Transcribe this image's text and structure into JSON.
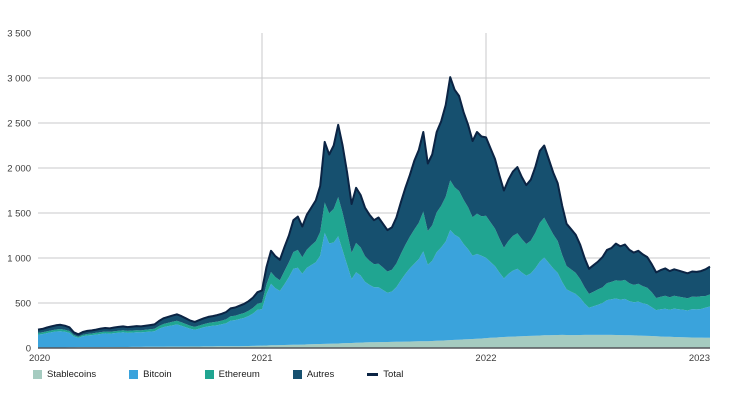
{
  "chart_data": {
    "type": "area",
    "stacked": true,
    "title": "",
    "unit_hint": "milliards USD",
    "xlim": [
      2020,
      2023
    ],
    "ylim": [
      0,
      3500
    ],
    "x_start": 2020,
    "x_step_years": 0.02,
    "grid": {
      "horizontal_ticks": [
        500,
        1000,
        1500,
        2000,
        2500,
        3000
      ],
      "vertical_years": [
        2021,
        2022
      ]
    },
    "y_ticks": [
      0,
      500,
      1000,
      1500,
      2000,
      2500,
      3000,
      3500
    ],
    "y_tick_labels": [
      "0",
      "500",
      "1 000",
      "1 500",
      "2 000",
      "2 500",
      "3 000",
      "3 500"
    ],
    "x_tick_labels": [
      "2020",
      "2021",
      "2022",
      "2023"
    ],
    "legend_position": "bottom",
    "series": [
      {
        "name": "Stablecoins",
        "color": "#a5cbc0",
        "values": [
          5,
          5,
          5,
          6,
          6,
          6,
          6,
          7,
          7,
          8,
          8,
          8,
          8,
          9,
          9,
          10,
          10,
          10,
          11,
          11,
          11,
          12,
          12,
          12,
          13,
          13,
          13,
          14,
          14,
          15,
          15,
          16,
          16,
          16,
          17,
          17,
          17,
          18,
          18,
          18,
          19,
          19,
          19,
          20,
          20,
          20,
          21,
          22,
          23,
          25,
          27,
          28,
          30,
          31,
          32,
          33,
          34,
          36,
          37,
          38,
          40,
          41,
          43,
          44,
          46,
          47,
          49,
          50,
          52,
          54,
          56,
          58,
          60,
          62,
          63,
          64,
          65,
          66,
          67,
          68,
          69,
          70,
          71,
          72,
          73,
          74,
          75,
          76,
          78,
          80,
          82,
          85,
          88,
          90,
          92,
          95,
          98,
          100,
          103,
          106,
          110,
          113,
          116,
          119,
          122,
          125,
          127,
          129,
          131,
          133,
          135,
          137,
          139,
          141,
          142,
          143,
          144,
          145,
          144,
          143,
          143,
          144,
          145,
          146,
          146,
          146,
          145,
          145,
          145,
          144,
          143,
          142,
          141,
          140,
          139,
          137,
          135,
          133,
          130,
          128,
          126,
          124,
          122,
          121,
          119,
          118,
          117,
          116,
          115,
          114,
          113
        ]
      },
      {
        "name": "Bitcoin",
        "color": "#3aa3dc",
        "values": [
          144,
          149,
          161,
          168,
          177,
          181,
          174,
          161,
          121,
          104,
          122,
          131,
          135,
          140,
          147,
          152,
          149,
          155,
          159,
          163,
          157,
          159,
          163,
          161,
          165,
          169,
          174,
          199,
          218,
          228,
          236,
          246,
          232,
          215,
          197,
          186,
          199,
          212,
          222,
          229,
          234,
          244,
          257,
          284,
          290,
          302,
          314,
          334,
          360,
          399,
          405,
          571,
          683,
          633,
          602,
          674,
          754,
          844,
          854,
          787,
          850,
          881,
          910,
          983,
          1234,
          1115,
          1123,
          1191,
          1033,
          872,
          710,
          783,
          746,
          674,
          638,
          610,
          609,
          578,
          547,
          560,
          608,
          682,
          752,
          813,
          863,
          914,
          1000,
          849,
          891,
          986,
          1036,
          1098,
          1223,
          1168,
          1137,
          1061,
          1000,
          924,
          942,
          920,
          892,
          843,
          794,
          720,
          651,
          698,
          733,
          752,
          708,
          671,
          694,
          749,
          820,
          865,
          803,
          741,
          691,
          588,
          507,
          483,
          458,
          412,
          351,
          301,
          317,
          334,
          355,
          387,
          396,
          406,
          395,
          403,
          380,
          368,
          376,
          361,
          350,
          319,
          291,
          302,
          311,
          300,
          316,
          310,
          305,
          299,
          315,
          313,
          318,
          335,
          348
        ]
      },
      {
        "name": "Ethereum",
        "color": "#20a591",
        "values": [
          19,
          20,
          21,
          22,
          23,
          24,
          23,
          21,
          16,
          14,
          16,
          17,
          18,
          20,
          21,
          21,
          21,
          22,
          22,
          23,
          22,
          23,
          23,
          23,
          25,
          27,
          27,
          31,
          35,
          36,
          40,
          41,
          39,
          36,
          33,
          31,
          34,
          36,
          38,
          39,
          40,
          42,
          44,
          48,
          49,
          52,
          54,
          57,
          62,
          68,
          74,
          109,
          131,
          124,
          119,
          147,
          164,
          187,
          199,
          184,
          202,
          220,
          232,
          263,
          337,
          336,
          374,
          437,
          418,
          360,
          293,
          327,
          312,
          285,
          269,
          258,
          263,
          250,
          236,
          242,
          262,
          295,
          325,
          351,
          381,
          404,
          442,
          375,
          394,
          441,
          463,
          497,
          553,
          528,
          515,
          492,
          465,
          429,
          448,
          438,
          468,
          442,
          417,
          378,
          342,
          366,
          385,
          395,
          372,
          352,
          364,
          393,
          431,
          443,
          411,
          379,
          354,
          301,
          260,
          247,
          235,
          211,
          180,
          154,
          163,
          171,
          173,
          189,
          193,
          203,
          207,
          212,
          199,
          193,
          198,
          190,
          184,
          167,
          135,
          140,
          144,
          139,
          143,
          140,
          138,
          135,
          139,
          139,
          141,
          129,
          135
        ]
      },
      {
        "name": "Autres",
        "color": "#16506f",
        "values": [
          37,
          38,
          41,
          44,
          46,
          47,
          45,
          41,
          31,
          26,
          32,
          34,
          35,
          36,
          38,
          39,
          38,
          41,
          43,
          43,
          42,
          44,
          45,
          44,
          45,
          46,
          48,
          56,
          63,
          66,
          69,
          72,
          68,
          63,
          58,
          56,
          60,
          64,
          67,
          69,
          72,
          75,
          80,
          88,
          91,
          96,
          101,
          107,
          115,
          128,
          134,
          192,
          236,
          232,
          227,
          266,
          298,
          353,
          370,
          341,
          388,
          418,
          455,
          510,
          673,
          652,
          704,
          802,
          747,
          664,
          541,
          612,
          582,
          539,
          510,
          488,
          513,
          486,
          460,
          470,
          511,
          573,
          632,
          684,
          763,
          808,
          883,
          750,
          787,
          893,
          939,
          1020,
          1146,
          1084,
          1056,
          972,
          917,
          847,
          907,
          886,
          870,
          822,
          773,
          703,
          635,
          681,
          715,
          734,
          689,
          654,
          677,
          731,
          800,
          801,
          744,
          687,
          641,
          546,
          469,
          447,
          424,
          383,
          324,
          279,
          294,
          309,
          337,
          369,
          376,
          407,
          385,
          393,
          370,
          359,
          367,
          352,
          341,
          311,
          284,
          295,
          304,
          292,
          294,
          289,
          283,
          278,
          279,
          277,
          281,
          297,
          309
        ]
      }
    ],
    "total_line": {
      "name": "Total",
      "color": "#0b2444",
      "definition": "somme des séries empilées"
    }
  },
  "style_tokens": {
    "grid_color": "#c9cacb",
    "axis_color": "#55565b",
    "tick_text_color": "#3c3c3c",
    "background": "#ffffff"
  }
}
